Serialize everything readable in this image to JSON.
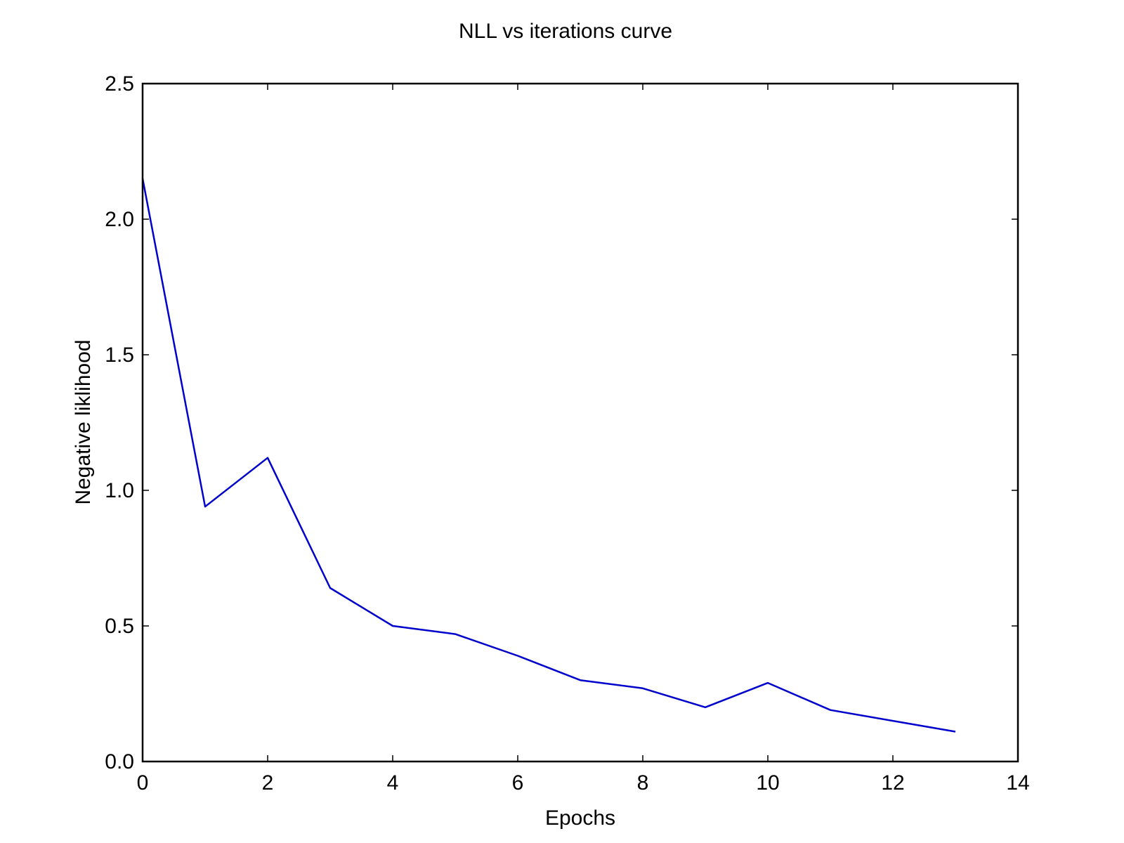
{
  "chart_data": {
    "type": "line",
    "title": "NLL vs iterations curve",
    "xlabel": "Epochs",
    "ylabel": "Negative liklihood",
    "xlim": [
      0,
      14
    ],
    "ylim": [
      0.0,
      2.5
    ],
    "xticks": [
      0,
      2,
      4,
      6,
      8,
      10,
      12,
      14
    ],
    "xtick_labels": [
      "0",
      "2",
      "4",
      "6",
      "8",
      "10",
      "12",
      "14"
    ],
    "yticks": [
      0.0,
      0.5,
      1.0,
      1.5,
      2.0,
      2.5
    ],
    "ytick_labels": [
      "0.0",
      "0.5",
      "1.0",
      "1.5",
      "2.0",
      "2.5"
    ],
    "grid": false,
    "series": [
      {
        "color": "#0000cc",
        "x": [
          0,
          1,
          2,
          3,
          4,
          5,
          6,
          7,
          8,
          9,
          10,
          11,
          12,
          13
        ],
        "y": [
          2.15,
          0.94,
          1.12,
          0.64,
          0.5,
          0.47,
          0.39,
          0.3,
          0.27,
          0.2,
          0.29,
          0.19,
          0.15,
          0.11
        ]
      }
    ]
  }
}
